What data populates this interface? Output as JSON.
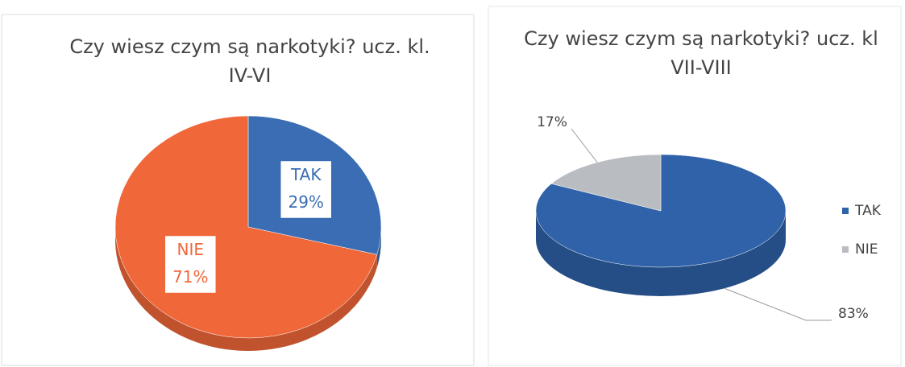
{
  "chart_data": [
    {
      "type": "pie3d",
      "title": "Czy wiesz czym są narkotyki? ucz. kl. IV-VI",
      "categories": [
        "TAK",
        "NIE"
      ],
      "values": [
        29,
        71
      ],
      "value_labels": [
        "29%",
        "71%"
      ],
      "colors": [
        "#3a6db3",
        "#f0683a"
      ],
      "labels": "inside"
    },
    {
      "type": "pie3d",
      "title": "Czy wiesz czym są narkotyki? ucz. kl VII-VIII",
      "categories": [
        "TAK",
        "NIE"
      ],
      "values": [
        83,
        17
      ],
      "value_labels": [
        "83%",
        "17%"
      ],
      "colors": [
        "#2f62a8",
        "#b9bdc1"
      ],
      "labels": "outside",
      "legend": "right"
    }
  ]
}
